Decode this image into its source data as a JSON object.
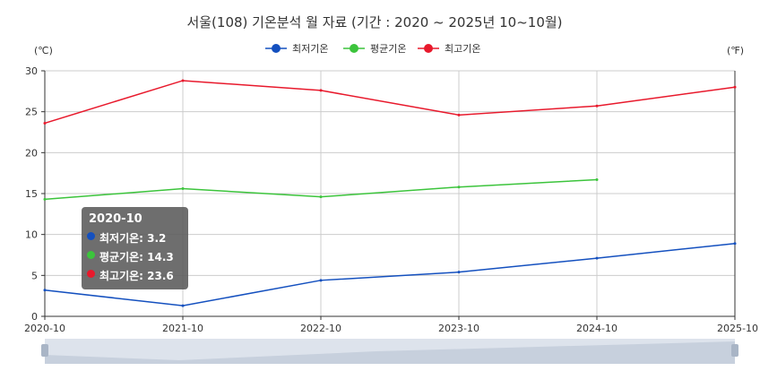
{
  "chart_data": {
    "type": "line",
    "title": "서울(108) 기온분석 월 자료 (기간 : 2020 ~ 2025년  10~10월)",
    "left_unit": "(℃)",
    "right_unit": "(℉)",
    "x": [
      "2020-10",
      "2021-10",
      "2022-10",
      "2023-10",
      "2024-10",
      "2025-10"
    ],
    "ylim": [
      0,
      30
    ],
    "yticks": [
      0,
      5,
      10,
      15,
      20,
      25,
      30
    ],
    "grid": true,
    "legend_position": "top-center",
    "series": [
      {
        "name": "최저기온",
        "color": "#1450bf",
        "values": [
          3.2,
          1.3,
          4.4,
          5.4,
          7.1,
          8.9
        ]
      },
      {
        "name": "평균기온",
        "color": "#3cc43c",
        "values": [
          14.3,
          15.6,
          14.6,
          15.8,
          16.7,
          null
        ]
      },
      {
        "name": "최고기온",
        "color": "#e8192c",
        "values": [
          23.6,
          28.8,
          27.6,
          24.6,
          25.7,
          28.0
        ]
      }
    ],
    "tooltip": {
      "title": "2020-10",
      "rows": [
        {
          "label": "최저기온: 3.2",
          "color": "#1450bf"
        },
        {
          "label": "평균기온: 14.3",
          "color": "#3cc43c"
        },
        {
          "label": "최고기온: 23.6",
          "color": "#e8192c"
        }
      ]
    }
  }
}
